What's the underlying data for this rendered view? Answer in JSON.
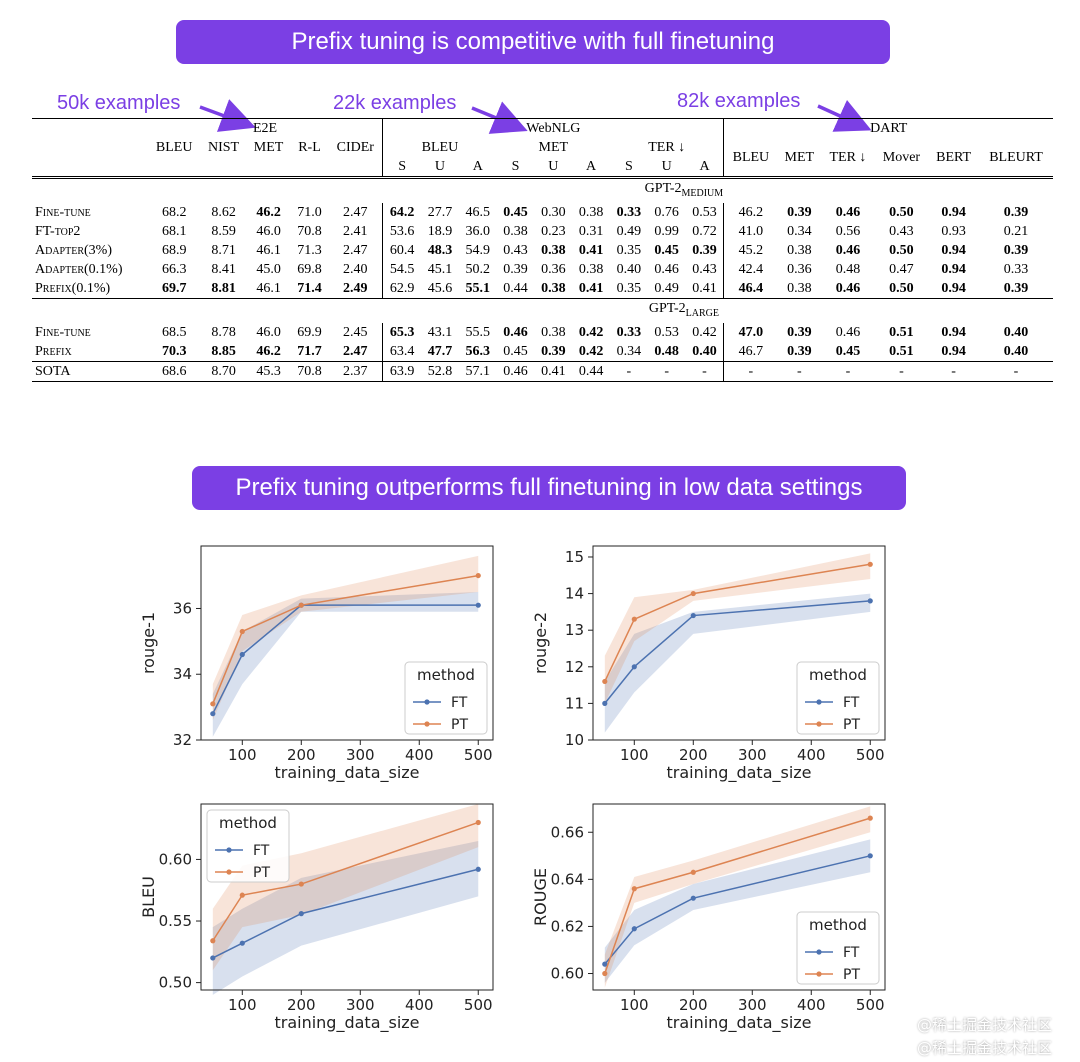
{
  "banner1": "Prefix tuning is competitive with full finetuning",
  "banner2": "Prefix tuning outperforms full finetuning in low data settings",
  "annotations": {
    "e2e": "50k examples",
    "webnlg": "22k examples",
    "dart": "82k examples"
  },
  "table": {
    "groups": {
      "e2e": "E2E",
      "webnlg": "WebNLG",
      "dart": "DART"
    },
    "e2e_cols": [
      "BLEU",
      "NIST",
      "MET",
      "R-L",
      "CIDEr"
    ],
    "webnlg_cols": [
      "BLEU",
      "MET",
      "TER ↓"
    ],
    "webnlg_sub": [
      "S",
      "U",
      "A",
      "S",
      "U",
      "A",
      "S",
      "U",
      "A"
    ],
    "dart_cols": [
      "BLEU",
      "MET",
      "TER ↓",
      "Mover",
      "BERT",
      "BLEURT"
    ],
    "section_medium": "GPT-2",
    "section_medium_sub": "MEDIUM",
    "section_large": "GPT-2",
    "section_large_sub": "LARGE",
    "rows": [
      {
        "label": "Fine-tune",
        "cells": [
          "68.2",
          "8.62",
          "46.2",
          "71.0",
          "2.47",
          "64.2",
          "27.7",
          "46.5",
          "0.45",
          "0.30",
          "0.38",
          "0.33",
          "0.76",
          "0.53",
          "46.2",
          "0.39",
          "0.46",
          "0.50",
          "0.94",
          "0.39"
        ],
        "bold": [
          2,
          5,
          8,
          11,
          15,
          16,
          17,
          18,
          19
        ]
      },
      {
        "label": "FT-top2",
        "cells": [
          "68.1",
          "8.59",
          "46.0",
          "70.8",
          "2.41",
          "53.6",
          "18.9",
          "36.0",
          "0.38",
          "0.23",
          "0.31",
          "0.49",
          "0.99",
          "0.72",
          "41.0",
          "0.34",
          "0.56",
          "0.43",
          "0.93",
          "0.21"
        ],
        "bold": []
      },
      {
        "label": "Adapter(3%)",
        "cells": [
          "68.9",
          "8.71",
          "46.1",
          "71.3",
          "2.47",
          "60.4",
          "48.3",
          "54.9",
          "0.43",
          "0.38",
          "0.41",
          "0.35",
          "0.45",
          "0.39",
          "45.2",
          "0.38",
          "0.46",
          "0.50",
          "0.94",
          "0.39"
        ],
        "bold": [
          6,
          9,
          10,
          12,
          13,
          16,
          17,
          18,
          19
        ]
      },
      {
        "label": "Adapter(0.1%)",
        "cells": [
          "66.3",
          "8.41",
          "45.0",
          "69.8",
          "2.40",
          "54.5",
          "45.1",
          "50.2",
          "0.39",
          "0.36",
          "0.38",
          "0.40",
          "0.46",
          "0.43",
          "42.4",
          "0.36",
          "0.48",
          "0.47",
          "0.94",
          "0.33"
        ],
        "bold": [
          18
        ]
      },
      {
        "label": "Prefix(0.1%)",
        "cells": [
          "69.7",
          "8.81",
          "46.1",
          "71.4",
          "2.49",
          "62.9",
          "45.6",
          "55.1",
          "0.44",
          "0.38",
          "0.41",
          "0.35",
          "0.49",
          "0.41",
          "46.4",
          "0.38",
          "0.46",
          "0.50",
          "0.94",
          "0.39"
        ],
        "bold": [
          0,
          1,
          3,
          4,
          7,
          9,
          10,
          14,
          16,
          17,
          18,
          19
        ]
      },
      {
        "label": "Fine-tune",
        "cells": [
          "68.5",
          "8.78",
          "46.0",
          "69.9",
          "2.45",
          "65.3",
          "43.1",
          "55.5",
          "0.46",
          "0.38",
          "0.42",
          "0.33",
          "0.53",
          "0.42",
          "47.0",
          "0.39",
          "0.46",
          "0.51",
          "0.94",
          "0.40"
        ],
        "bold": [
          5,
          8,
          10,
          11,
          14,
          15,
          17,
          18,
          19
        ]
      },
      {
        "label": "Prefix",
        "cells": [
          "70.3",
          "8.85",
          "46.2",
          "71.7",
          "2.47",
          "63.4",
          "47.7",
          "56.3",
          "0.45",
          "0.39",
          "0.42",
          "0.34",
          "0.48",
          "0.40",
          "46.7",
          "0.39",
          "0.45",
          "0.51",
          "0.94",
          "0.40"
        ],
        "bold": [
          0,
          1,
          2,
          3,
          4,
          6,
          7,
          9,
          10,
          12,
          13,
          15,
          16,
          17,
          18,
          19
        ]
      },
      {
        "label": "SOTA",
        "cells": [
          "68.6",
          "8.70",
          "45.3",
          "70.8",
          "2.37",
          "63.9",
          "52.8",
          "57.1",
          "0.46",
          "0.41",
          "0.44",
          "-",
          "-",
          "-",
          "-",
          "-",
          "-",
          "-",
          "-",
          "-"
        ],
        "bold": []
      }
    ]
  },
  "chart_data": [
    {
      "type": "line",
      "xlabel": "training_data_size",
      "ylabel": "rouge-1",
      "x": [
        50,
        100,
        200,
        500
      ],
      "xlim": [
        30,
        525
      ],
      "xticks": [
        100,
        200,
        300,
        400,
        500
      ],
      "ylim": [
        32,
        37.9
      ],
      "yticks": [
        32,
        34,
        36
      ],
      "legend_title": "method",
      "legend_loc": "lower right",
      "series": [
        {
          "name": "FT",
          "color": "#4c72b0",
          "values": [
            32.8,
            34.6,
            36.1,
            36.1
          ],
          "lo": [
            32.1,
            33.7,
            35.9,
            35.9
          ],
          "hi": [
            33.4,
            35.3,
            36.3,
            36.5
          ]
        },
        {
          "name": "PT",
          "color": "#dd8452",
          "values": [
            33.1,
            35.3,
            36.1,
            37.0
          ],
          "lo": [
            32.6,
            34.7,
            35.9,
            36.5
          ],
          "hi": [
            33.7,
            35.8,
            36.4,
            37.6
          ]
        }
      ]
    },
    {
      "type": "line",
      "xlabel": "training_data_size",
      "ylabel": "rouge-2",
      "x": [
        50,
        100,
        200,
        500
      ],
      "xlim": [
        30,
        525
      ],
      "xticks": [
        100,
        200,
        300,
        400,
        500
      ],
      "ylim": [
        10,
        15.3
      ],
      "yticks": [
        10,
        11,
        12,
        13,
        14,
        15
      ],
      "legend_title": "method",
      "legend_loc": "lower right",
      "series": [
        {
          "name": "FT",
          "color": "#4c72b0",
          "values": [
            11.0,
            12.0,
            13.4,
            13.8
          ],
          "lo": [
            10.2,
            11.3,
            12.9,
            13.5
          ],
          "hi": [
            11.6,
            12.9,
            13.5,
            14.0
          ]
        },
        {
          "name": "PT",
          "color": "#dd8452",
          "values": [
            11.6,
            13.3,
            14.0,
            14.8
          ],
          "lo": [
            11.0,
            12.7,
            13.8,
            14.4
          ],
          "hi": [
            12.3,
            13.9,
            14.1,
            15.1
          ]
        }
      ]
    },
    {
      "type": "line",
      "xlabel": "training_data_size",
      "ylabel": "BLEU",
      "x": [
        50,
        100,
        200,
        500
      ],
      "xlim": [
        30,
        525
      ],
      "xticks": [
        100,
        200,
        300,
        400,
        500
      ],
      "ylim": [
        0.494,
        0.645
      ],
      "yticks": [
        0.5,
        0.55,
        0.6
      ],
      "ytick_labels": [
        "0.50",
        "0.55",
        "0.60"
      ],
      "legend_title": "method",
      "legend_loc": "upper left",
      "series": [
        {
          "name": "FT",
          "color": "#4c72b0",
          "values": [
            0.52,
            0.532,
            0.556,
            0.592
          ],
          "lo": [
            0.49,
            0.505,
            0.53,
            0.57
          ],
          "hi": [
            0.545,
            0.56,
            0.585,
            0.615
          ]
        },
        {
          "name": "PT",
          "color": "#dd8452",
          "values": [
            0.534,
            0.571,
            0.58,
            0.63
          ],
          "lo": [
            0.51,
            0.545,
            0.555,
            0.61
          ],
          "hi": [
            0.56,
            0.595,
            0.605,
            0.645
          ]
        }
      ]
    },
    {
      "type": "line",
      "xlabel": "training_data_size",
      "ylabel": "ROUGE",
      "x": [
        50,
        100,
        200,
        500
      ],
      "xlim": [
        30,
        525
      ],
      "xticks": [
        100,
        200,
        300,
        400,
        500
      ],
      "ylim": [
        0.593,
        0.672
      ],
      "yticks": [
        0.6,
        0.62,
        0.64,
        0.66
      ],
      "ytick_labels": [
        "0.60",
        "0.62",
        "0.64",
        "0.66"
      ],
      "legend_title": "method",
      "legend_loc": "lower right",
      "series": [
        {
          "name": "FT",
          "color": "#4c72b0",
          "values": [
            0.604,
            0.619,
            0.632,
            0.65
          ],
          "lo": [
            0.596,
            0.612,
            0.627,
            0.643
          ],
          "hi": [
            0.611,
            0.627,
            0.638,
            0.657
          ]
        },
        {
          "name": "PT",
          "color": "#dd8452",
          "values": [
            0.6,
            0.636,
            0.643,
            0.666
          ],
          "lo": [
            0.594,
            0.63,
            0.638,
            0.66
          ],
          "hi": [
            0.608,
            0.641,
            0.648,
            0.671
          ]
        }
      ]
    }
  ],
  "watermark": "@稀土掘金技术社区"
}
